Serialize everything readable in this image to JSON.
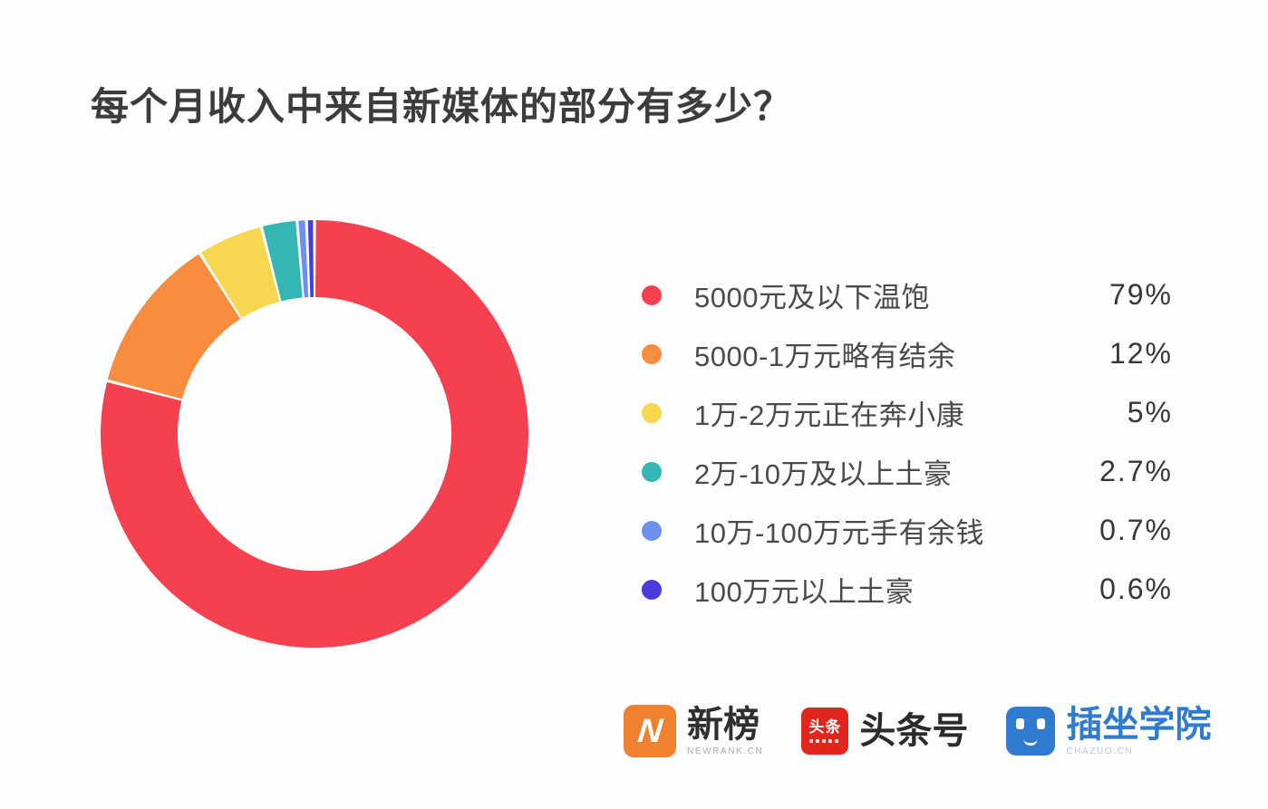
{
  "title": "每个月收入中来自新媒体的部分有多少？",
  "chart_data": {
    "type": "pie",
    "variant": "donut",
    "title": "每个月收入中来自新媒体的部分有多少？",
    "legend_position": "right",
    "start_angle_deg": 0,
    "direction": "clockwise",
    "inner_radius_ratio": 0.64,
    "slice_gap_deg": 0.8,
    "categories": [
      "5000元及以下温饱",
      "5000-1万元略有结余",
      "1万-2万元正在奔小康",
      "2万-10万及以上土豪",
      "10万-100万元手有余钱",
      "100万元以上土豪"
    ],
    "values": [
      79,
      12,
      5,
      2.7,
      0.7,
      0.6
    ],
    "slices": [
      {
        "label": "5000元及以下温饱",
        "value_pct": 79,
        "display": "79%",
        "color": "#F4404F"
      },
      {
        "label": "5000-1万元略有结余",
        "value_pct": 12,
        "display": "12%",
        "color": "#F78C3E"
      },
      {
        "label": "1万-2万元正在奔小康",
        "value_pct": 5,
        "display": "5%",
        "color": "#F7D750"
      },
      {
        "label": "2万-10万及以上土豪",
        "value_pct": 2.7,
        "display": "2.7%",
        "color": "#35B6B4"
      },
      {
        "label": "10万-100万元手有余钱",
        "value_pct": 0.7,
        "display": "0.7%",
        "color": "#6E8FEE"
      },
      {
        "label": "100万元以上土豪",
        "value_pct": 0.6,
        "display": "0.6%",
        "color": "#4A3BDB"
      }
    ]
  },
  "footer": {
    "brands": [
      {
        "name": "新榜",
        "subtext": "NEWRANK.CN",
        "icon": "newrank-logo",
        "icon_color": "#F0812F",
        "icon_letter": "N",
        "name_color": "#2f2f2f"
      },
      {
        "name": "头条号",
        "subtext": "",
        "icon": "toutiao-logo",
        "icon_color": "#E0271D",
        "icon_text": "头条",
        "name_color": "#2b2b2b"
      },
      {
        "name": "插坐学院",
        "subtext": "CHAZUO.CN",
        "icon": "chazuo-logo",
        "icon_color": "#2E7BD0",
        "name_color": "#2E7BD0"
      }
    ]
  }
}
